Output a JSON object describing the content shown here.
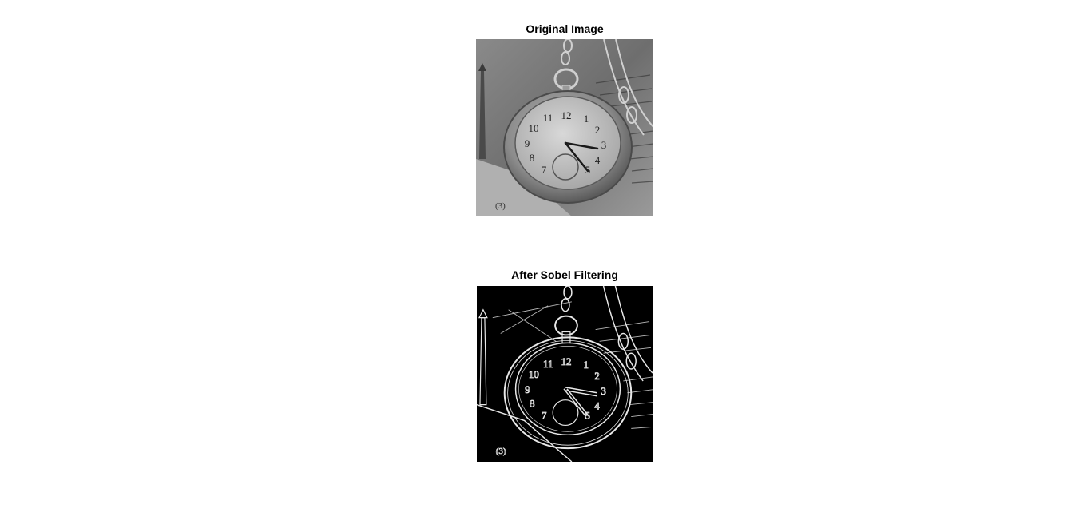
{
  "figure": {
    "panels": [
      {
        "title": "Original Image",
        "image_description_icon": "grayscale-pocket-watch-photo",
        "tone": "grayscale"
      },
      {
        "title": "After Sobel Filtering",
        "image_description_icon": "sobel-edge-map-pocket-watch",
        "tone": "edge-map"
      }
    ],
    "dial_numerals": [
      "12",
      "1",
      "2",
      "3",
      "4",
      "5",
      "7",
      "8",
      "9",
      "10",
      "11"
    ],
    "corner_mark": "(3)",
    "colors": {
      "background": "#ffffff",
      "title_text": "#000000",
      "original_base": "#7a7a7a",
      "sobel_base": "#000000",
      "sobel_edges": "#e8e8e8"
    }
  }
}
